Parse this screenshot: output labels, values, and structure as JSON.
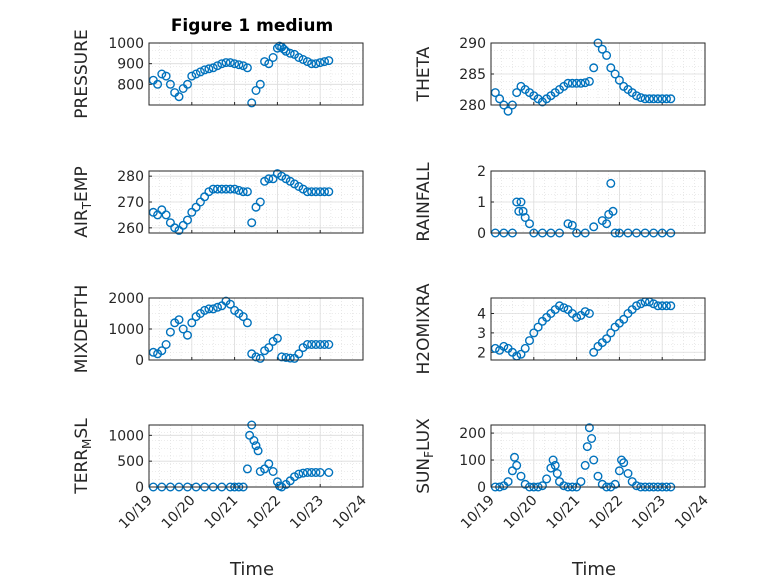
{
  "chart_data": {
    "type": "scatter",
    "title": "Figure 1 medium",
    "marker_color": "#0072BD",
    "grid": true,
    "x_ticks": [
      "10/19",
      "10/20",
      "10/21",
      "10/22",
      "10/23",
      "10/24"
    ],
    "xlabel": "Time",
    "panels": [
      {
        "ylabel": "PRESSURE",
        "ylim": [
          700,
          1000
        ],
        "yticks": [
          "800",
          "900",
          "1000"
        ],
        "x": [
          0.1,
          0.2,
          0.3,
          0.4,
          0.5,
          0.6,
          0.7,
          0.8,
          0.9,
          1.0,
          1.1,
          1.2,
          1.3,
          1.4,
          1.5,
          1.6,
          1.7,
          1.8,
          1.9,
          2.0,
          2.1,
          2.2,
          2.3,
          2.4,
          2.5,
          2.6,
          2.7,
          2.8,
          2.9,
          3.0,
          3.05,
          3.1,
          3.15,
          3.2,
          3.3,
          3.4,
          3.5,
          3.6,
          3.7,
          3.8,
          3.9,
          4.0,
          4.1,
          4.2
        ],
        "y": [
          820,
          800,
          850,
          840,
          800,
          760,
          740,
          780,
          800,
          840,
          850,
          860,
          870,
          875,
          880,
          890,
          900,
          905,
          905,
          900,
          895,
          890,
          880,
          710,
          770,
          800,
          910,
          900,
          930,
          975,
          985,
          980,
          970,
          960,
          950,
          945,
          930,
          920,
          910,
          900,
          900,
          905,
          910,
          915
        ]
      },
      {
        "ylabel": "THETA",
        "ylim": [
          280,
          290
        ],
        "yticks": [
          "280",
          "285",
          "290"
        ],
        "x": [
          0.1,
          0.2,
          0.3,
          0.4,
          0.5,
          0.6,
          0.7,
          0.8,
          0.9,
          1.0,
          1.1,
          1.2,
          1.3,
          1.4,
          1.5,
          1.6,
          1.7,
          1.8,
          1.9,
          2.0,
          2.1,
          2.2,
          2.3,
          2.4,
          2.5,
          2.6,
          2.7,
          2.8,
          2.9,
          3.0,
          3.1,
          3.2,
          3.3,
          3.4,
          3.5,
          3.6,
          3.7,
          3.8,
          3.9,
          4.0,
          4.1,
          4.2
        ],
        "y": [
          282,
          281,
          280,
          279,
          280,
          282,
          283,
          282.5,
          282,
          281.5,
          281,
          280.5,
          281,
          281.5,
          282,
          282.5,
          283,
          283.5,
          283.5,
          283.5,
          283.5,
          283.6,
          283.8,
          286,
          290,
          289,
          288,
          286,
          285,
          284,
          283,
          282.5,
          282,
          281.5,
          281.2,
          281,
          281,
          281,
          281,
          281,
          281,
          281
        ]
      },
      {
        "ylabel": "AIR_TEMP",
        "ylim": [
          258,
          282
        ],
        "yticks": [
          "260",
          "270",
          "280"
        ],
        "x": [
          0.1,
          0.2,
          0.3,
          0.4,
          0.5,
          0.6,
          0.7,
          0.8,
          0.9,
          1.0,
          1.1,
          1.2,
          1.3,
          1.4,
          1.5,
          1.6,
          1.7,
          1.8,
          1.9,
          2.0,
          2.1,
          2.2,
          2.3,
          2.4,
          2.5,
          2.6,
          2.7,
          2.8,
          2.9,
          3.0,
          3.1,
          3.2,
          3.3,
          3.4,
          3.5,
          3.6,
          3.7,
          3.8,
          3.9,
          4.0,
          4.1,
          4.2
        ],
        "y": [
          266,
          265,
          267,
          265,
          262,
          260,
          259,
          261,
          263,
          266,
          268,
          270,
          272,
          274,
          275,
          275,
          275,
          275,
          275,
          275,
          274.5,
          274,
          274,
          262,
          268,
          270,
          278,
          279,
          279,
          281,
          280,
          279,
          278,
          277,
          276,
          275,
          274,
          274,
          274,
          274,
          274,
          274
        ]
      },
      {
        "ylabel": "RAINFALL",
        "ylim": [
          0,
          2
        ],
        "yticks": [
          "0",
          "1",
          "2"
        ],
        "x": [
          0.1,
          0.3,
          0.5,
          0.6,
          0.65,
          0.7,
          0.75,
          0.8,
          0.9,
          1.0,
          1.2,
          1.4,
          1.6,
          1.8,
          1.9,
          2.0,
          2.2,
          2.4,
          2.6,
          2.7,
          2.75,
          2.8,
          2.85,
          2.9,
          3.0,
          3.2,
          3.4,
          3.6,
          3.8,
          4.0,
          4.2
        ],
        "y": [
          0,
          0,
          0,
          1.0,
          0.7,
          1.0,
          0.7,
          0.5,
          0.3,
          0,
          0,
          0,
          0,
          0.3,
          0.25,
          0,
          0,
          0.2,
          0.4,
          0.3,
          0.6,
          1.6,
          0.7,
          0,
          0,
          0,
          0,
          0,
          0,
          0,
          0
        ]
      },
      {
        "ylabel": "MIXDEPTH",
        "ylim": [
          0,
          2000
        ],
        "yticks": [
          "0",
          "1000",
          "2000"
        ],
        "x": [
          0.1,
          0.2,
          0.3,
          0.4,
          0.5,
          0.6,
          0.7,
          0.8,
          0.9,
          1.0,
          1.1,
          1.2,
          1.3,
          1.4,
          1.5,
          1.6,
          1.7,
          1.8,
          1.9,
          2.0,
          2.1,
          2.2,
          2.3,
          2.4,
          2.5,
          2.6,
          2.7,
          2.8,
          2.9,
          3.0,
          3.1,
          3.2,
          3.3,
          3.4,
          3.5,
          3.6,
          3.7,
          3.8,
          3.9,
          4.0,
          4.1,
          4.2
        ],
        "y": [
          250,
          200,
          300,
          500,
          900,
          1200,
          1300,
          1000,
          800,
          1200,
          1400,
          1500,
          1600,
          1650,
          1650,
          1700,
          1750,
          1900,
          1800,
          1600,
          1500,
          1400,
          1200,
          200,
          100,
          50,
          300,
          400,
          600,
          700,
          100,
          80,
          60,
          50,
          200,
          400,
          500,
          500,
          500,
          500,
          500,
          500
        ]
      },
      {
        "ylabel": "H2OMIXRA",
        "ylim": [
          1.6,
          4.8
        ],
        "yticks": [
          "2",
          "3",
          "4"
        ],
        "x": [
          0.1,
          0.2,
          0.3,
          0.4,
          0.5,
          0.6,
          0.7,
          0.8,
          0.9,
          1.0,
          1.1,
          1.2,
          1.3,
          1.4,
          1.5,
          1.6,
          1.7,
          1.8,
          1.9,
          2.0,
          2.1,
          2.2,
          2.3,
          2.4,
          2.5,
          2.6,
          2.7,
          2.8,
          2.9,
          3.0,
          3.1,
          3.2,
          3.3,
          3.4,
          3.5,
          3.6,
          3.7,
          3.8,
          3.9,
          4.0,
          4.1,
          4.2
        ],
        "y": [
          2.2,
          2.1,
          2.3,
          2.2,
          2.0,
          1.8,
          1.9,
          2.2,
          2.6,
          3.0,
          3.3,
          3.6,
          3.8,
          4.0,
          4.2,
          4.4,
          4.3,
          4.2,
          4.0,
          3.8,
          3.9,
          4.1,
          4.0,
          2.0,
          2.3,
          2.5,
          2.7,
          3.0,
          3.3,
          3.5,
          3.7,
          4.0,
          4.2,
          4.4,
          4.5,
          4.6,
          4.6,
          4.5,
          4.4,
          4.4,
          4.4,
          4.4
        ]
      },
      {
        "ylabel": "TERR_MSL",
        "ylim": [
          0,
          1200
        ],
        "yticks": [
          "0",
          "500",
          "1000"
        ],
        "x": [
          0.1,
          0.3,
          0.5,
          0.7,
          0.9,
          1.1,
          1.3,
          1.5,
          1.7,
          1.9,
          2.0,
          2.1,
          2.2,
          2.3,
          2.35,
          2.4,
          2.45,
          2.5,
          2.55,
          2.6,
          2.7,
          2.8,
          2.9,
          3.0,
          3.05,
          3.1,
          3.2,
          3.3,
          3.4,
          3.5,
          3.6,
          3.7,
          3.8,
          3.9,
          4.0,
          4.2
        ],
        "y": [
          0,
          0,
          0,
          0,
          0,
          0,
          0,
          0,
          0,
          0,
          0,
          0,
          0,
          350,
          1000,
          1200,
          900,
          800,
          700,
          300,
          350,
          450,
          300,
          100,
          20,
          0,
          50,
          120,
          200,
          250,
          270,
          280,
          280,
          280,
          280,
          280
        ]
      },
      {
        "ylabel": "SUN_FLUX",
        "ylim": [
          0,
          230
        ],
        "yticks": [
          "0",
          "100",
          "200"
        ],
        "x": [
          0.1,
          0.2,
          0.3,
          0.4,
          0.5,
          0.55,
          0.6,
          0.7,
          0.8,
          0.9,
          1.0,
          1.1,
          1.2,
          1.3,
          1.4,
          1.45,
          1.5,
          1.55,
          1.6,
          1.7,
          1.8,
          1.9,
          2.0,
          2.1,
          2.2,
          2.25,
          2.3,
          2.35,
          2.4,
          2.5,
          2.6,
          2.7,
          2.8,
          2.9,
          3.0,
          3.05,
          3.1,
          3.2,
          3.3,
          3.4,
          3.5,
          3.6,
          3.7,
          3.8,
          3.9,
          4.0,
          4.1,
          4.2
        ],
        "y": [
          0,
          0,
          5,
          20,
          60,
          110,
          80,
          40,
          10,
          0,
          0,
          0,
          5,
          30,
          70,
          100,
          80,
          50,
          20,
          5,
          0,
          0,
          0,
          20,
          80,
          150,
          220,
          180,
          100,
          40,
          10,
          0,
          0,
          10,
          60,
          100,
          90,
          50,
          20,
          5,
          0,
          0,
          0,
          0,
          0,
          0,
          0,
          0
        ]
      }
    ]
  }
}
